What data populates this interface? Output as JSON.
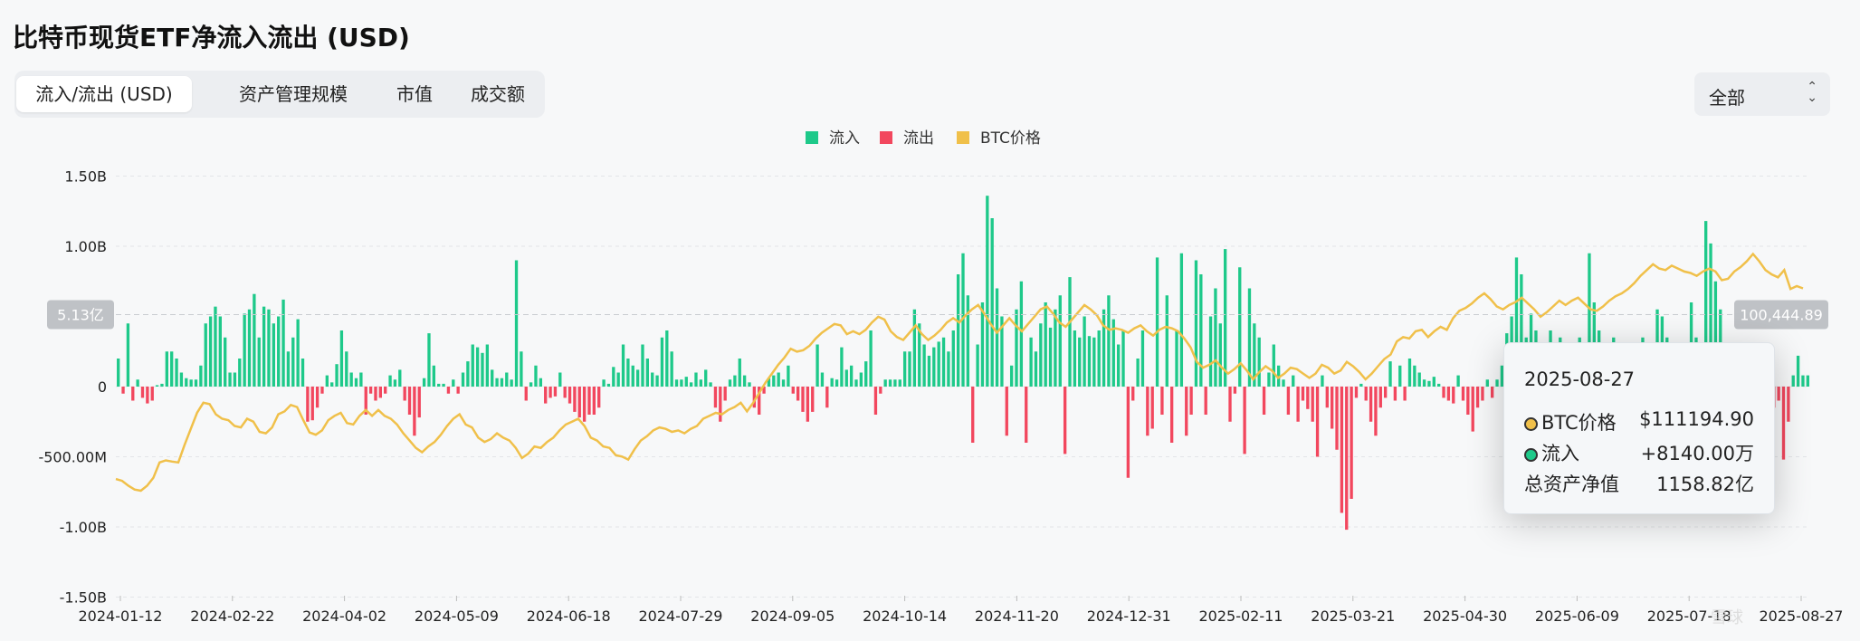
{
  "page": {
    "title": "比特币现货ETF净流入流出 (USD)"
  },
  "tabs": [
    {
      "label": "流入/流出 (USD)",
      "active": true
    },
    {
      "label": "资产管理规模",
      "active": false
    },
    {
      "label": "市值",
      "active": false
    },
    {
      "label": "成交额",
      "active": false
    }
  ],
  "filter": {
    "value": "全部",
    "icon": "chevron-updown-icon"
  },
  "legend": [
    {
      "label": "流入",
      "color": "#1ec98a"
    },
    {
      "label": "流出",
      "color": "#f2475e"
    },
    {
      "label": "BTC价格",
      "color": "#f0c04a"
    }
  ],
  "chart_data": {
    "type": "bar",
    "y_axis": {
      "range": [
        -1500000000,
        1500000000
      ],
      "ticks": [
        "1.50B",
        "1.00B",
        "5.13亿",
        "0",
        "-500.00M",
        "-1.00B",
        "-1.50B"
      ],
      "crosshair_label": "5.13亿",
      "crosshair_value": 513000000
    },
    "x_axis": {
      "ticks": [
        "2024-01-12",
        "2024-02-22",
        "2024-04-02",
        "2024-05-09",
        "2024-06-18",
        "2024-07-29",
        "2024-09-05",
        "2024-10-14",
        "2024-11-20",
        "2024-12-31",
        "2025-02-11",
        "2025-03-21",
        "2025-04-30",
        "2025-06-09",
        "2025-07-18",
        "2025-08-27"
      ]
    },
    "price_axis": {
      "crosshair_label": "100,444.89",
      "crosshair_value": 100444.89,
      "range": [
        30000,
        130000
      ]
    },
    "flows": [
      0.2,
      -0.05,
      0.45,
      -0.1,
      0.05,
      -0.08,
      -0.12,
      -0.1,
      0.01,
      0.02,
      0.25,
      0.25,
      0.2,
      0.1,
      0.06,
      0.05,
      0.05,
      0.15,
      0.45,
      0.5,
      0.57,
      0.5,
      0.35,
      0.1,
      0.1,
      0.2,
      0.52,
      0.55,
      0.66,
      0.35,
      0.57,
      0.55,
      0.45,
      0.5,
      0.62,
      0.25,
      0.35,
      0.48,
      0.2,
      -0.25,
      -0.24,
      -0.15,
      -0.05,
      0.08,
      0.03,
      0.16,
      0.4,
      0.25,
      0.1,
      0.06,
      0.1,
      -0.2,
      -0.05,
      -0.1,
      -0.08,
      -0.05,
      0.08,
      0.05,
      0.12,
      -0.1,
      -0.2,
      -0.35,
      -0.22,
      0.06,
      0.38,
      0.15,
      0.02,
      0.02,
      -0.05,
      0.05,
      -0.05,
      0.1,
      0.18,
      0.3,
      0.28,
      0.24,
      0.3,
      0.12,
      0.06,
      0.06,
      0.1,
      0.05,
      0.9,
      0.25,
      -0.1,
      0.03,
      0.15,
      0.06,
      -0.12,
      -0.08,
      -0.07,
      0.1,
      -0.08,
      -0.12,
      -0.18,
      -0.22,
      -0.25,
      -0.2,
      -0.2,
      -0.15,
      0.05,
      0.02,
      0.14,
      0.1,
      0.3,
      0.2,
      0.15,
      0.12,
      0.3,
      0.2,
      0.1,
      0.08,
      0.35,
      0.4,
      0.25,
      0.05,
      0.05,
      0.07,
      0.03,
      0.1,
      0.05,
      0.12,
      0.03,
      -0.15,
      -0.25,
      -0.1,
      0.05,
      0.08,
      0.2,
      0.08,
      0.03,
      -0.15,
      -0.2,
      -0.05,
      0.06,
      0.08,
      0.1,
      0.05,
      0.15,
      -0.05,
      -0.1,
      -0.18,
      -0.25,
      -0.18,
      0.3,
      0.1,
      -0.15,
      0.06,
      0.05,
      0.28,
      0.12,
      0.15,
      0.05,
      0.1,
      0.18,
      0.4,
      -0.2,
      -0.05,
      0.05,
      0.05,
      0.05,
      0.05,
      0.25,
      0.25,
      0.55,
      0.45,
      0.3,
      0.22,
      0.28,
      0.32,
      0.35,
      0.25,
      0.4,
      0.8,
      0.95,
      0.65,
      -0.4,
      0.3,
      0.6,
      1.36,
      1.2,
      0.7,
      0.5,
      -0.35,
      0.15,
      0.55,
      0.75,
      -0.4,
      0.35,
      0.25,
      0.45,
      0.6,
      0.42,
      0.55,
      0.65,
      -0.48,
      0.78,
      0.4,
      0.35,
      0.5,
      0.36,
      0.35,
      0.4,
      0.55,
      0.65,
      0.48,
      0.3,
      0.4,
      -0.65,
      -0.1,
      0.2,
      0.4,
      -0.35,
      -0.3,
      0.92,
      -0.2,
      0.65,
      -0.4,
      0.4,
      0.95,
      -0.35,
      -0.2,
      0.9,
      0.8,
      -0.2,
      0.5,
      0.7,
      0.45,
      0.98,
      -0.25,
      -0.05,
      0.85,
      -0.48,
      0.7,
      0.45,
      0.35,
      -0.2,
      0.1,
      0.3,
      0.15,
      0.05,
      -0.2,
      0.08,
      -0.25,
      -0.1,
      -0.16,
      -0.25,
      -0.5,
      0.08,
      -0.15,
      -0.3,
      -0.45,
      -0.9,
      -1.02,
      -0.8,
      -0.08,
      0.02,
      -0.1,
      -0.25,
      -0.35,
      -0.15,
      -0.08,
      0.18,
      -0.1,
      0.15,
      -0.1,
      0.2,
      0.15,
      0.1,
      0.05,
      0.04,
      0.07,
      0.02,
      -0.08,
      -0.1,
      -0.12,
      0.08,
      -0.1,
      -0.2,
      -0.32,
      -0.15,
      -0.1,
      0.05,
      -0.08,
      0.05,
      0.15,
      0.38,
      0.5,
      0.92,
      0.8,
      0.35,
      0.52,
      0.4,
      0.2,
      0.06,
      0.4,
      0.3,
      0.35,
      0.15,
      0.2,
      0.1,
      0.35,
      0.25,
      0.95,
      0.6,
      0.4,
      0.3,
      0.15,
      0.35,
      0.2,
      0.1,
      0.05,
      0.1,
      0.3,
      0.35,
      0.2,
      0.25,
      0.55,
      0.5,
      0.35,
      0.2,
      0.3,
      0.2,
      0.28,
      0.6,
      0.35,
      0.28,
      1.18,
      1.02,
      0.75,
      0.55,
      0.15,
      0.1,
      0.08,
      0.05,
      0.08,
      0.1,
      0.15,
      0.2,
      0.2,
      0.08,
      -0.15,
      -0.1,
      -0.52,
      -0.25,
      0.08,
      0.22,
      0.08,
      0.08
    ],
    "price": [
      45800,
      45200,
      43500,
      42200,
      41800,
      43500,
      46200,
      51500,
      52200,
      51800,
      51500,
      57500,
      63000,
      68500,
      72000,
      71500,
      68000,
      66500,
      66000,
      64000,
      63500,
      66500,
      65500,
      62000,
      61500,
      63500,
      68000,
      69000,
      71200,
      70500,
      66000,
      61800,
      61000,
      62500,
      66000,
      67500,
      68500,
      65000,
      64500,
      67500,
      69500,
      67500,
      69500,
      67500,
      66500,
      64500,
      61500,
      59000,
      56500,
      55000,
      57000,
      58500,
      61000,
      64000,
      66500,
      68000,
      64500,
      63500,
      60000,
      58500,
      59500,
      61500,
      60000,
      59000,
      56500,
      53000,
      54500,
      57000,
      56500,
      58500,
      60000,
      62500,
      64500,
      65500,
      66500,
      64000,
      60000,
      59000,
      57000,
      56500,
      54000,
      53500,
      52500,
      56000,
      59000,
      60500,
      62500,
      63500,
      63000,
      62000,
      62500,
      61500,
      63000,
      64000,
      66500,
      67500,
      68500,
      68000,
      69500,
      70500,
      72000,
      69000,
      72000,
      75500,
      79000,
      82000,
      85000,
      87500,
      90500,
      89500,
      90000,
      91500,
      94000,
      96000,
      97500,
      99000,
      98500,
      95500,
      96500,
      95500,
      97000,
      99500,
      101500,
      100500,
      96500,
      94500,
      93500,
      96000,
      98500,
      95500,
      93500,
      95000,
      97000,
      99500,
      101000,
      99500,
      102000,
      104000,
      105500,
      102500,
      99000,
      96000,
      98500,
      101000,
      98500,
      96500,
      99000,
      101500,
      104000,
      105000,
      102500,
      99500,
      98000,
      100500,
      103000,
      105500,
      104000,
      102000,
      98500,
      97000,
      97500,
      97000,
      96000,
      97500,
      98500,
      96500,
      95000,
      97000,
      98000,
      97500,
      96500,
      94000,
      91000,
      86000,
      84000,
      85000,
      86500,
      84000,
      82000,
      83500,
      85500,
      83000,
      80000,
      82500,
      84500,
      83000,
      80500,
      82000,
      84000,
      83500,
      82000,
      80500,
      82000,
      85000,
      84000,
      82000,
      83000,
      86000,
      84500,
      82500,
      80000,
      82000,
      84500,
      87000,
      88500,
      93000,
      94500,
      94000,
      96500,
      97000,
      94500,
      96500,
      98000,
      97000,
      101000,
      103500,
      104500,
      106000,
      108000,
      109500,
      107500,
      105000,
      104000,
      105500,
      106500,
      108000,
      106000,
      104000,
      101500,
      103000,
      105000,
      107000,
      105500,
      107000,
      108000,
      106000,
      104000,
      103500,
      105000,
      107000,
      108500,
      109500,
      111000,
      113000,
      115500,
      117500,
      119500,
      118000,
      117500,
      119000,
      118000,
      117000,
      116500,
      115500,
      117000,
      118000,
      117000,
      114000,
      114500,
      117000,
      118500,
      120500,
      123000,
      120500,
      117500,
      116000,
      115000,
      117500,
      111000,
      112000,
      111200
    ]
  },
  "tooltip": {
    "date": "2025-08-27",
    "rows": [
      {
        "label": "BTC价格",
        "value": "$111194.90",
        "color": "#f0c04a"
      },
      {
        "label": "流入",
        "value": "+8140.00万",
        "color": "#1ec98a"
      },
      {
        "label": "总资产净值",
        "value": "1158.82亿"
      }
    ]
  },
  "watermark": "雪球"
}
